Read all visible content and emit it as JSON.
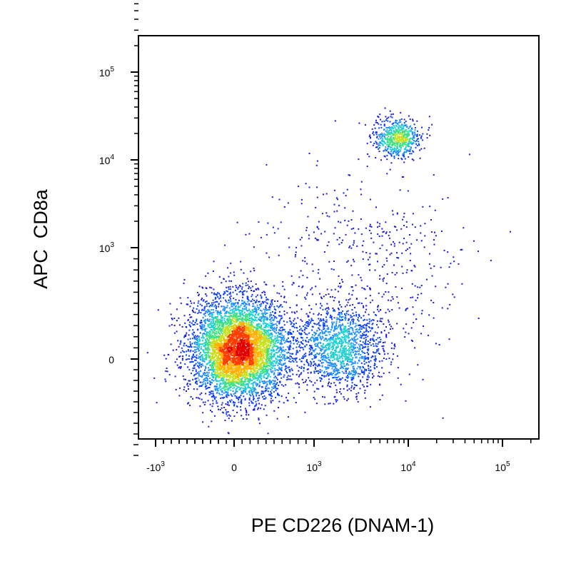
{
  "chart_data": {
    "type": "scatter",
    "style": "density pseudocolor dot plot",
    "xlabel": "PE CD226 (DNAM-1)",
    "ylabel": "APC  CD8a",
    "x_scale": "biexponential",
    "y_scale": "biexponential",
    "xlim": [
      -2000,
      200000
    ],
    "ylim": [
      -1000,
      200000
    ],
    "grid": false,
    "x_ticks": [
      {
        "value": -1000,
        "base": "-10",
        "exp": "3"
      },
      {
        "value": 0,
        "text": "0"
      },
      {
        "value": 1000,
        "base": "10",
        "exp": "3"
      },
      {
        "value": 10000,
        "base": "10",
        "exp": "4"
      },
      {
        "value": 100000,
        "base": "10",
        "exp": "5"
      }
    ],
    "y_ticks": [
      {
        "value": 0,
        "text": "0"
      },
      {
        "value": 1000,
        "base": "10",
        "exp": "3"
      },
      {
        "value": 10000,
        "base": "10",
        "exp": "4"
      },
      {
        "value": 100000,
        "base": "10",
        "exp": "5"
      }
    ],
    "density_colors": [
      "#1a1adb",
      "#0a3cff",
      "#1e90ff",
      "#20d0d0",
      "#40e080",
      "#c8e020",
      "#ffb000",
      "#ff3c00",
      "#e00000"
    ],
    "populations": [
      {
        "center_x": 50,
        "center_y": 100,
        "count": 5200
      },
      {
        "center_x": 1800,
        "center_y": 100,
        "count": 1400
      },
      {
        "center_x": 7500,
        "center_y": 18000,
        "count": 620
      },
      {
        "center_x": 5000,
        "center_y": 700,
        "count": 350
      },
      {
        "center_x": 1500,
        "center_y": 1200,
        "count": 150
      }
    ]
  }
}
